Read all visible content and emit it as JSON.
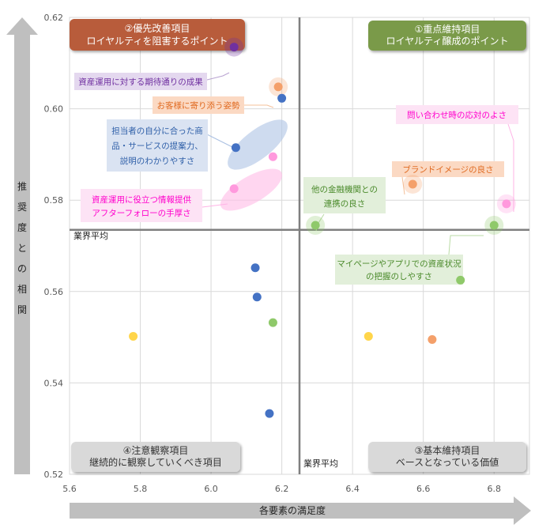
{
  "chart_data": {
    "type": "scatter",
    "title": "",
    "xlabel": "各要素の満足度",
    "ylabel": "推奨度との相関",
    "xlim": [
      5.6,
      6.9
    ],
    "ylim": [
      0.52,
      0.62
    ],
    "x_ticks": [
      "5.6",
      "5.8",
      "6.0",
      "6.2",
      "6.4",
      "6.6",
      "6.8"
    ],
    "y_ticks": [
      "0.52",
      "0.54",
      "0.56",
      "0.58",
      "0.60",
      "0.62"
    ],
    "grid": true,
    "average_x": 6.25,
    "average_y": 0.5735,
    "average_label_x": "業界平均",
    "average_label_y": "業界平均",
    "quadrants": [
      {
        "id": "q1",
        "line1": "①重点維持項目",
        "line2": "ロイヤルティ醸成のポイント",
        "color": "#7a9a4a"
      },
      {
        "id": "q2",
        "line1": "②優先改善項目",
        "line2": "ロイヤルティを阻害するポイント",
        "color": "#b85c3a"
      },
      {
        "id": "q3",
        "line1": "③基本維持項目",
        "line2": "ベースとなっている価値",
        "color": "#d9d9d9"
      },
      {
        "id": "q4",
        "line1": "④注意観察項目",
        "line2": "継続的に観察していくべき項目",
        "color": "#d9d9d9"
      }
    ],
    "points": [
      {
        "x": 6.065,
        "y": 0.6135,
        "color": "#7030a0",
        "halo": true
      },
      {
        "x": 6.19,
        "y": 0.6048,
        "color": "#f4a06a",
        "halo": true
      },
      {
        "x": 6.2,
        "y": 0.6023,
        "color": "#4472c4"
      },
      {
        "x": 6.07,
        "y": 0.5915,
        "color": "#4472c4"
      },
      {
        "x": 6.175,
        "y": 0.5895,
        "color": "#ff99dd"
      },
      {
        "x": 6.065,
        "y": 0.5825,
        "color": "#ff99dd"
      },
      {
        "x": 6.57,
        "y": 0.5835,
        "color": "#f4a06a",
        "halo": true
      },
      {
        "x": 6.835,
        "y": 0.5792,
        "color": "#ff99dd",
        "halo": true
      },
      {
        "x": 6.295,
        "y": 0.5745,
        "color": "#8fc96a",
        "halo": true
      },
      {
        "x": 6.8,
        "y": 0.5745,
        "color": "#8fc96a",
        "halo": true
      },
      {
        "x": 6.125,
        "y": 0.5652,
        "color": "#4472c4"
      },
      {
        "x": 6.13,
        "y": 0.5588,
        "color": "#4472c4"
      },
      {
        "x": 6.175,
        "y": 0.5532,
        "color": "#8fc96a"
      },
      {
        "x": 6.705,
        "y": 0.5625,
        "color": "#8fc96a"
      },
      {
        "x": 5.78,
        "y": 0.5502,
        "color": "#ffd54a"
      },
      {
        "x": 6.445,
        "y": 0.5502,
        "color": "#ffd54a"
      },
      {
        "x": 6.625,
        "y": 0.5495,
        "color": "#f4a06a"
      },
      {
        "x": 6.165,
        "y": 0.5333,
        "color": "#4472c4"
      }
    ],
    "callouts": [
      {
        "lines": [
          "資産運用に対する期待通りの成果"
        ],
        "color": "#7030a0"
      },
      {
        "lines": [
          "お客様に寄り添う姿勢"
        ],
        "color": "#e06a20"
      },
      {
        "lines": [
          "担当者の自分に合った商",
          "品・サービスの提案力、",
          "説明のわかりやすさ"
        ],
        "color": "#2e5fa8"
      },
      {
        "lines": [
          "資産運用に役立つ情報提供",
          "アフターフォローの手厚さ"
        ],
        "color": "#ff00cc"
      },
      {
        "lines": [
          "問い合わせ時の応対のよさ"
        ],
        "color": "#ff00cc"
      },
      {
        "lines": [
          "ブランドイメージの良さ"
        ],
        "color": "#e06a20"
      },
      {
        "lines": [
          "他の金融機関との",
          "連携の良さ"
        ],
        "color": "#4a8a2a"
      },
      {
        "lines": [
          "マイページやアプリでの資産状況",
          "の把握のしやすさ"
        ],
        "color": "#4a8a2a"
      }
    ]
  }
}
